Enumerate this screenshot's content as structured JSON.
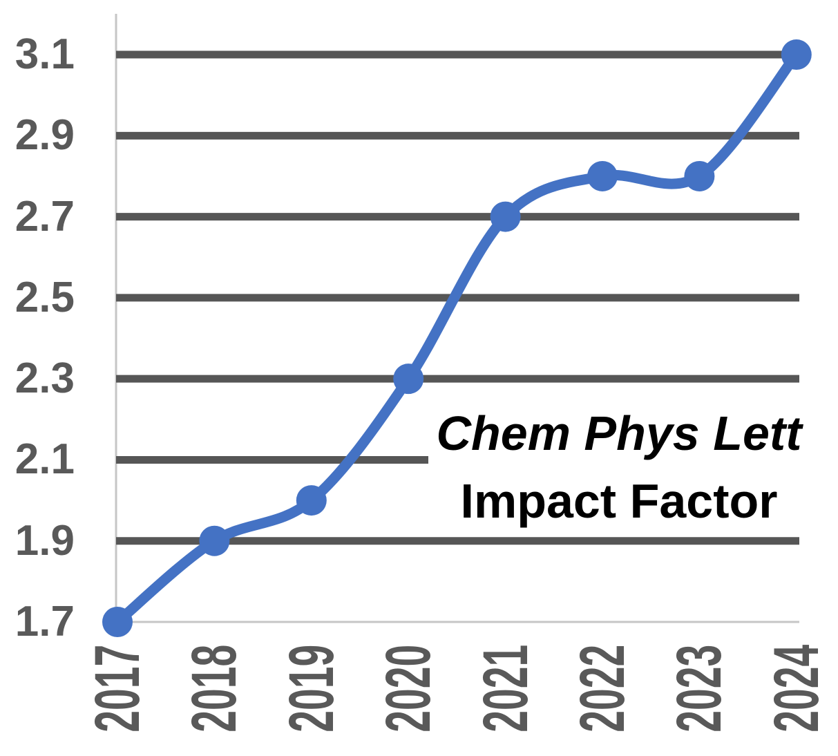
{
  "chart_data": {
    "type": "line",
    "title": "",
    "annotation": {
      "line1": "Chem Phys Lett",
      "line2": "Impact Factor"
    },
    "categories": [
      "2017",
      "2018",
      "2019",
      "2020",
      "2021",
      "2022",
      "2023",
      "2024"
    ],
    "series": [
      {
        "name": "Impact Factor",
        "values": [
          1.7,
          1.9,
          2.0,
          2.3,
          2.7,
          2.8,
          2.8,
          3.1
        ]
      }
    ],
    "y_axis": {
      "min": 1.7,
      "max": 3.1,
      "step": 0.2,
      "tick_labels": [
        "1.7",
        "1.9",
        "2.1",
        "2.3",
        "2.5",
        "2.7",
        "2.9",
        "3.1"
      ]
    },
    "grid": true,
    "legend": "none",
    "marker_style": "circle",
    "line_smoothing": true,
    "colors": {
      "line": "#4472C4",
      "marker": "#4472C4",
      "gridline": "#565656",
      "tick_label": "#595959",
      "axis_line": "#c6c6c6",
      "annotation_text": "#000000",
      "background": "#ffffff"
    }
  }
}
